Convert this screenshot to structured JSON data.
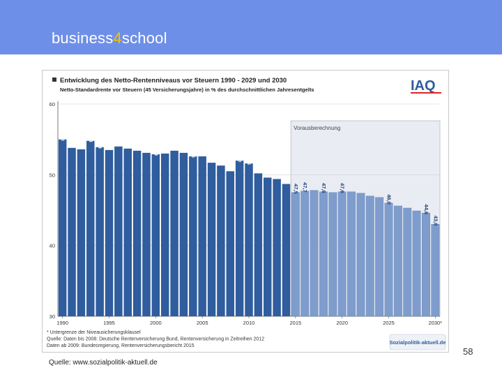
{
  "header": {
    "brand_prefix": "business",
    "brand_number": "4",
    "brand_suffix": "school"
  },
  "footer": {
    "source": "Quelle: www.sozialpolitik-aktuell.de",
    "slide_number": "58"
  },
  "colors": {
    "header_band": "#6e8fe8",
    "bar_actual": "#2f5d9e",
    "bar_forecast": "#7f9dcc",
    "forecast_region": "#e9edf3"
  },
  "chart_data": {
    "type": "bar",
    "title": "Entwicklung des Netto-Rentenniveaus vor Steuern 1990 - 2029 und 2030",
    "subtitle": "Netto-Standardrente vor Steuern (45 Versicherungsjahre) in % des durchschnittlichen Jahresentgelts",
    "logo": "IAQ",
    "forecast_label": "Vorausberechnung",
    "ylim": [
      30,
      60
    ],
    "yticks": [
      "30",
      "40",
      "50",
      "60"
    ],
    "xtick_labels": [
      "1990",
      "1995",
      "2000",
      "2005",
      "2010",
      "2015",
      "2020",
      "2025",
      "2030*"
    ],
    "footnotes": [
      "* Untergrenze der Niveausicherungsklausel",
      "Quelle: Daten bis 2008: Deutsche Rentenversicherung Bund, Rentenversicherung in Zeitreihen 2012",
      "Daten ab 2009: Bundesregierung, Rentenversicherungsbericht 2015"
    ],
    "watermark": "Sozialpolitik-aktuell.de",
    "years": [
      1990,
      1991,
      1992,
      1993,
      1994,
      1995,
      1996,
      1997,
      1998,
      1999,
      2000,
      2001,
      2002,
      2003,
      2004,
      2005,
      2006,
      2007,
      2008,
      2009,
      2010,
      2011,
      2012,
      2013,
      2014,
      2015,
      2016,
      2017,
      2018,
      2019,
      2020,
      2021,
      2022,
      2023,
      2024,
      2025,
      2026,
      2027,
      2028,
      2029,
      2030
    ],
    "values": [
      55.0,
      53.8,
      53.6,
      54.8,
      53.9,
      53.5,
      54.0,
      53.7,
      53.4,
      53.1,
      52.9,
      53.0,
      53.4,
      53.1,
      52.6,
      52.6,
      51.7,
      51.3,
      50.5,
      52.0,
      51.6,
      50.2,
      49.6,
      49.4,
      48.7,
      47.5,
      47.7,
      47.8,
      47.6,
      47.5,
      47.6,
      47.6,
      47.4,
      47.0,
      46.8,
      46.0,
      45.6,
      45.3,
      44.9,
      44.6,
      43.0
    ],
    "labels": [
      "55,0",
      "",
      "",
      "54,8",
      "53,9",
      "",
      "",
      "",
      "",
      "",
      "52,9",
      "",
      "",
      "",
      "52,6",
      "",
      "",
      "",
      "",
      "52,0",
      "51,6",
      "",
      "",
      "",
      "",
      "47,5",
      "47,7",
      "",
      "47,6",
      "",
      "47,6",
      "",
      "",
      "",
      "",
      "46,0",
      "",
      "",
      "",
      "44,6",
      "43,0"
    ],
    "forecast_from": 2015
  }
}
